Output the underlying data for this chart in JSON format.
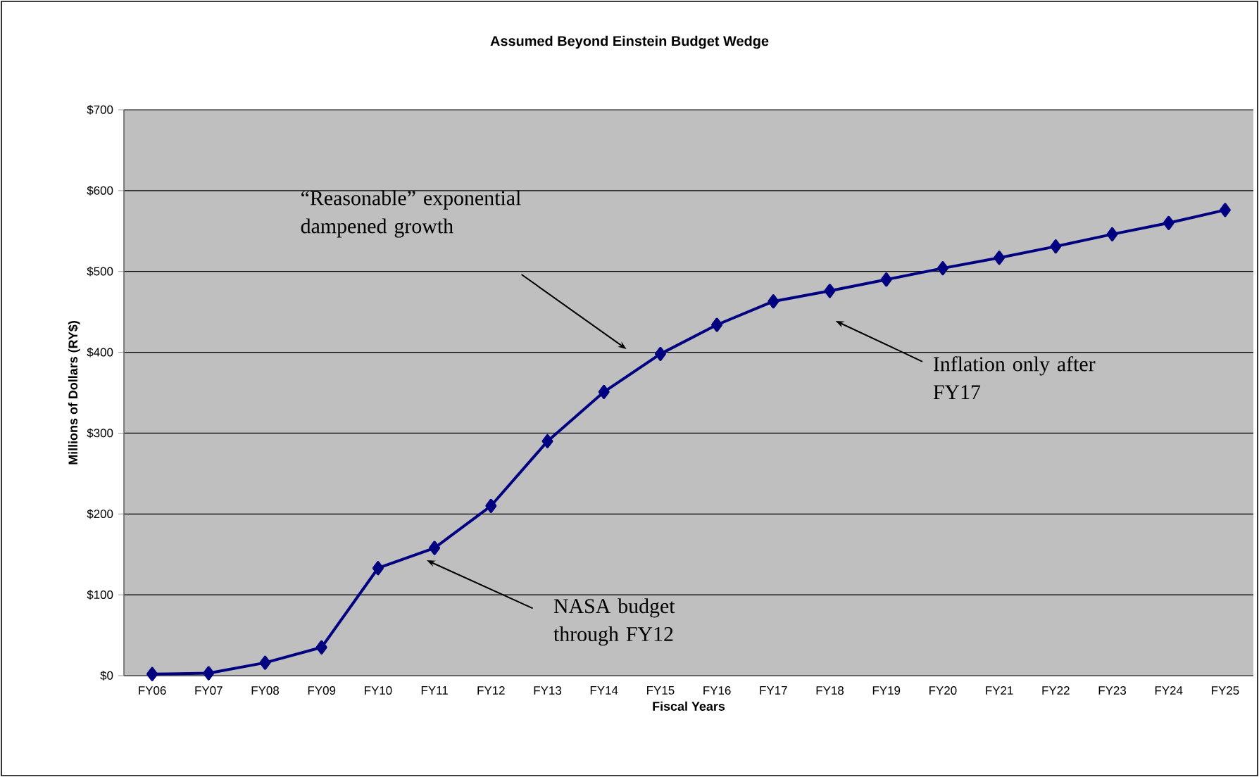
{
  "chart_data": {
    "type": "line",
    "title": "Assumed Beyond Einstein Budget Wedge",
    "xlabel": "Fiscal Years",
    "ylabel": "Millions of Dollars (RY$)",
    "categories": [
      "FY06",
      "FY07",
      "FY08",
      "FY09",
      "FY10",
      "FY11",
      "FY12",
      "FY13",
      "FY14",
      "FY15",
      "FY16",
      "FY17",
      "FY18",
      "FY19",
      "FY20",
      "FY21",
      "FY22",
      "FY23",
      "FY24",
      "FY25"
    ],
    "series": [
      {
        "color": "#000080",
        "values": [
          2,
          3,
          16,
          35,
          133,
          158,
          210,
          290,
          351,
          398,
          434,
          463,
          476,
          490,
          504,
          517,
          531,
          546,
          560,
          576
        ]
      }
    ],
    "ylim": [
      0,
      700
    ],
    "yticks": [
      {
        "value": 0,
        "label": "$0"
      },
      {
        "value": 100,
        "label": "$100"
      },
      {
        "value": 200,
        "label": "$200"
      },
      {
        "value": 300,
        "label": "$300"
      },
      {
        "value": 400,
        "label": "$400"
      },
      {
        "value": 500,
        "label": "$500"
      },
      {
        "value": 600,
        "label": "$600"
      },
      {
        "value": 700,
        "label": "$700"
      }
    ],
    "grid": "y",
    "marker": "diamond",
    "line_style": "solid",
    "annotations": [
      "“Reasonable” exponential dampened growth",
      "NASA budget through FY12",
      "Inflation only after FY17"
    ]
  }
}
